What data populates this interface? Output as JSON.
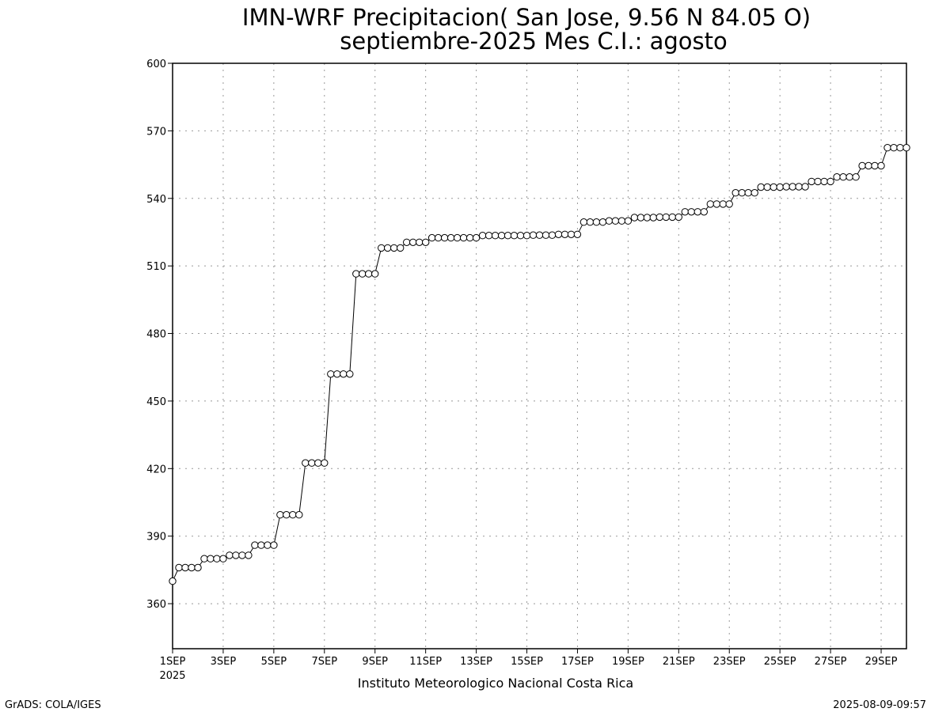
{
  "chart_data": {
    "type": "line",
    "title": "IMN-WRF  Precipitacion( San Jose, 9.56  N 84.05  O)",
    "subtitle": "septiembre-2025 Mes C.I.: agosto",
    "xlabel": "",
    "ylabel": "",
    "ylim": [
      340,
      600
    ],
    "yticks": [
      "360",
      "390",
      "420",
      "450",
      "480",
      "510",
      "540",
      "570",
      "600"
    ],
    "xlim": [
      1,
      30
    ],
    "xticks": [
      "1SEP",
      "3SEP",
      "5SEP",
      "7SEP",
      "9SEP",
      "11SEP",
      "13SEP",
      "15SEP",
      "17SEP",
      "19SEP",
      "21SEP",
      "23SEP",
      "25SEP",
      "27SEP",
      "29SEP"
    ],
    "x_year_label": "2025",
    "grid": true,
    "marker": "open-circle",
    "series": [
      {
        "values": [
          370,
          376,
          376,
          376,
          376,
          380,
          380,
          380,
          380,
          381.5,
          381.5,
          381.5,
          381.5,
          386,
          386,
          386,
          386,
          399.5,
          399.5,
          399.5,
          399.5,
          422.5,
          422.5,
          422.5,
          422.5,
          462,
          462,
          462,
          462,
          506.5,
          506.5,
          506.5,
          506.5,
          518,
          518,
          518,
          518,
          520.5,
          520.5,
          520.5,
          520.5,
          522.5,
          522.5,
          522.5,
          522.5,
          522.5,
          522.5,
          522.5,
          522.5,
          523.5,
          523.5,
          523.5,
          523.5,
          523.5,
          523.5,
          523.5,
          523.5,
          523.7,
          523.7,
          523.7,
          523.7,
          524,
          524,
          524,
          524,
          529.5,
          529.5,
          529.5,
          529.5,
          530,
          530,
          530,
          530,
          531.5,
          531.5,
          531.5,
          531.5,
          531.7,
          531.7,
          531.7,
          531.7,
          534,
          534,
          534,
          534,
          537.5,
          537.5,
          537.5,
          537.5,
          542.5,
          542.5,
          542.5,
          542.5,
          545,
          545,
          545,
          545,
          545.2,
          545.2,
          545.2,
          545.2,
          547.5,
          547.5,
          547.5,
          547.5,
          549.5,
          549.5,
          549.5,
          549.5,
          554.5,
          554.5,
          554.5,
          554.5,
          562.5,
          562.5,
          562.5,
          562.5
        ]
      }
    ]
  },
  "footer": {
    "institution": "Instituto Meteorologico Nacional Costa Rica",
    "credit": "GrADS: COLA/IGES",
    "timestamp": "2025-08-09-09:57"
  }
}
